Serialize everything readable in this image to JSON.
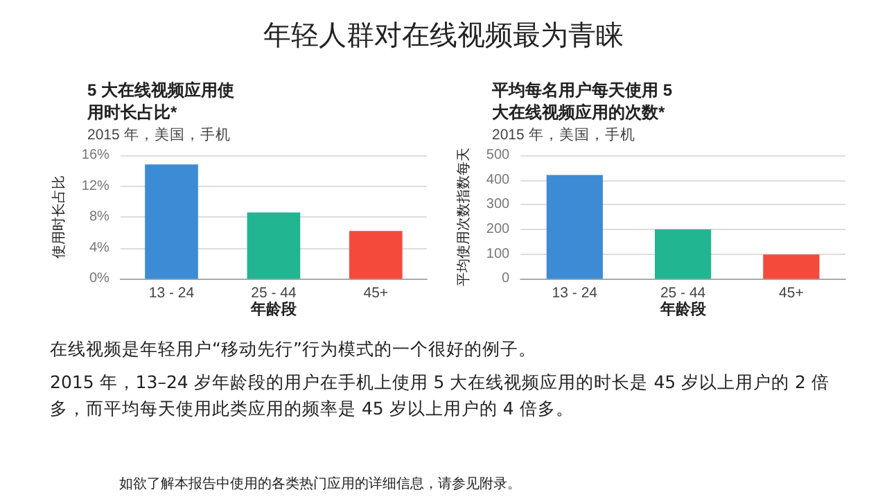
{
  "chart_data": [
    {
      "type": "bar",
      "title": "5 大在线视频应用使用时长占比*",
      "subtitle": "2015 年，美国，手机",
      "xlabel": "年龄段",
      "ylabel": "使用时长占比",
      "categories": [
        "13 - 24",
        "25 - 44",
        "45+"
      ],
      "values": [
        14.8,
        8.6,
        6.2
      ],
      "colors": [
        "#3d8bd4",
        "#22b591",
        "#f44a3c"
      ],
      "ylim": [
        0,
        16
      ],
      "yticks": [
        {
          "value": 0,
          "label": "0%"
        },
        {
          "value": 4,
          "label": "4%"
        },
        {
          "value": 8,
          "label": "8%"
        },
        {
          "value": 12,
          "label": "12%"
        },
        {
          "value": 16,
          "label": "16%"
        }
      ],
      "grid": "y"
    },
    {
      "type": "bar",
      "title": "平均每名用户每天使用 5 大在线视频应用的次数*",
      "subtitle": "2015 年，美国，手机",
      "xlabel": "年龄段",
      "ylabel": "平均使用次数指数每天",
      "categories": [
        "13 - 24",
        "25 - 44",
        "45+"
      ],
      "values": [
        420,
        200,
        98
      ],
      "colors": [
        "#3d8bd4",
        "#22b591",
        "#f44a3c"
      ],
      "ylim": [
        0,
        500
      ],
      "yticks": [
        0,
        100,
        200,
        300,
        400,
        500
      ],
      "grid": "y"
    },
    {
      "type": "other",
      "title": "年轻人群对在线视频最为青睐",
      "annotations": [
        "在线视频是年轻用户“移动先行”行为模式的一个很好的例子。",
        "2015 年，13–24 岁年龄段的用户在手机上使用 5 大在线视频应用的时长是 45 岁以上用户的 2 倍多，而平均每天使用此类应用的频率是 45 岁以上用户的 4 倍多。",
        "如欲了解本报告中使用的各类热门应用的详细信息，请参见附录。"
      ]
    }
  ]
}
